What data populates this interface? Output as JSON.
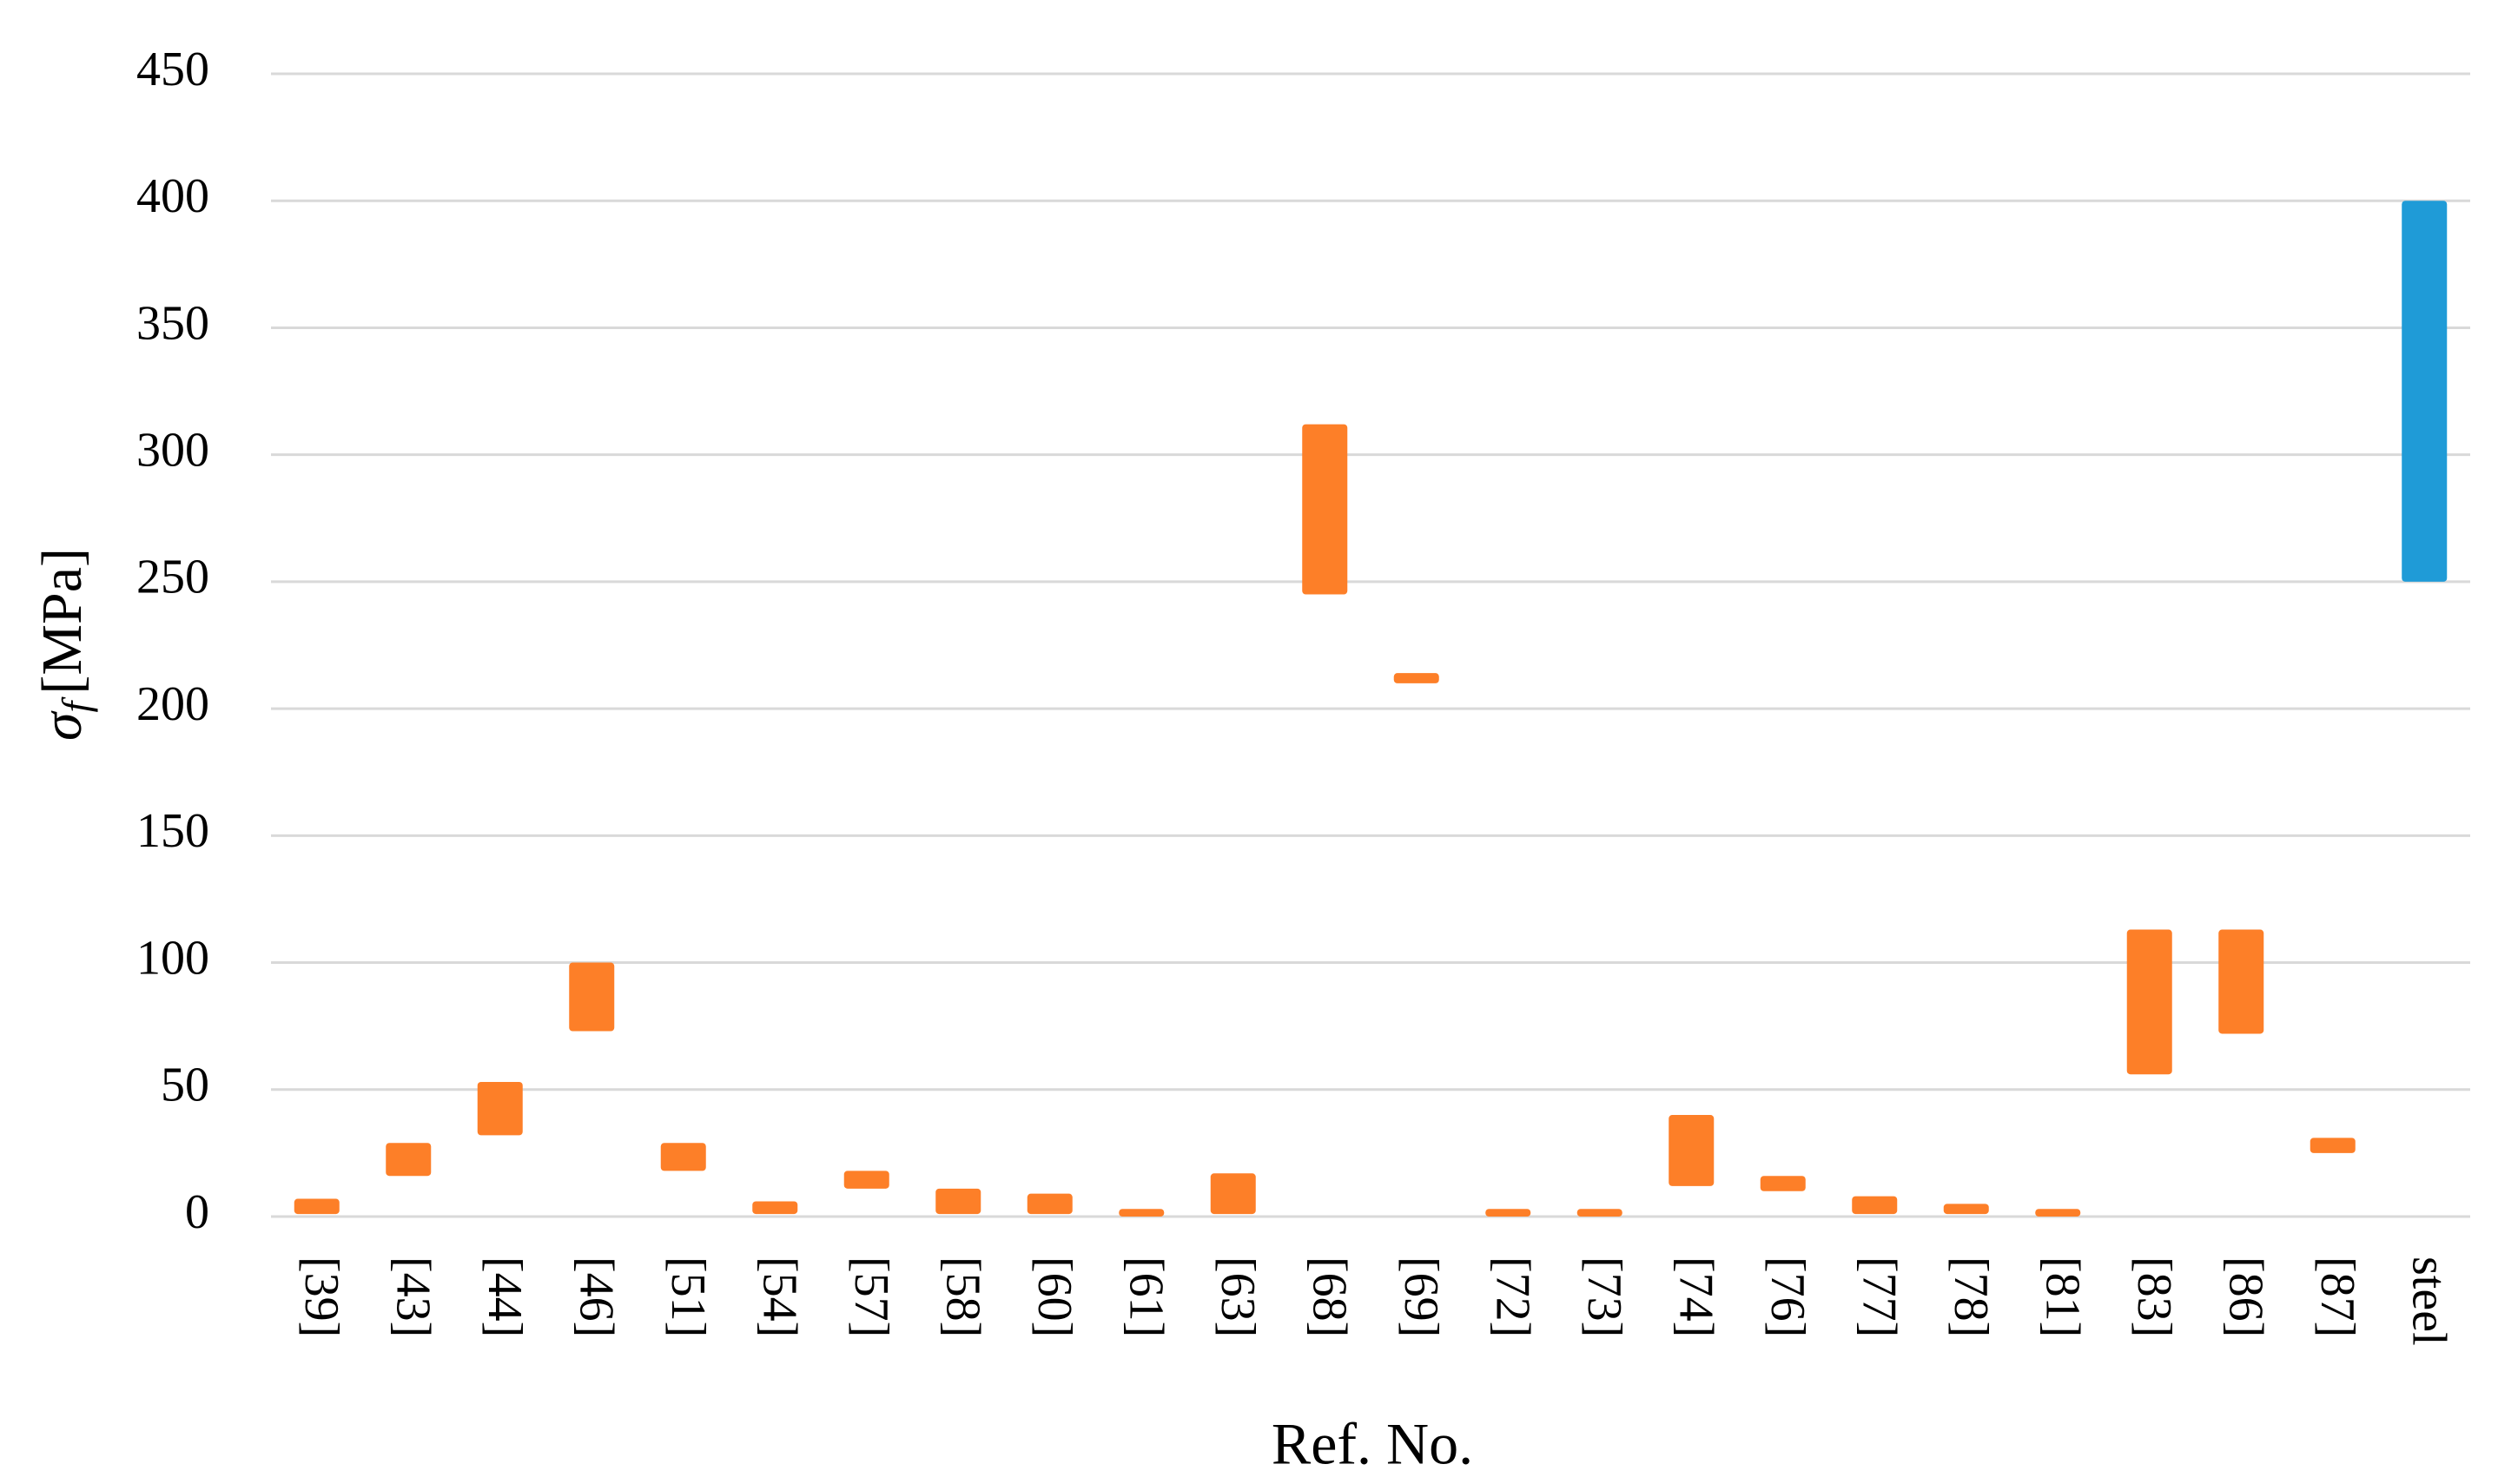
{
  "chart_data": {
    "type": "floating-bar",
    "xlabel": "Ref. No.",
    "ylabel_symbol": "σ",
    "ylabel_subscript": "f",
    "ylabel_unit": "[MPa]",
    "categories": [
      "[39]",
      "[43]",
      "[44]",
      "[46]",
      "[51]",
      "[54]",
      "[57]",
      "[58]",
      "[60]",
      "[61]",
      "[63]",
      "[68]",
      "[69]",
      "[72]",
      "[73]",
      "[74]",
      "[76]",
      "[77]",
      "[78]",
      "[81]",
      "[83]",
      "[86]",
      "[87]",
      "steel"
    ],
    "lows": [
      1,
      16,
      32,
      73,
      18,
      1,
      11,
      1,
      1,
      0,
      1,
      245,
      210,
      0,
      0,
      12,
      10,
      1,
      1,
      0,
      56,
      72,
      25,
      250
    ],
    "highs": [
      7,
      29,
      53,
      100,
      29,
      6,
      18,
      11,
      9,
      3,
      17,
      312,
      214,
      3,
      3,
      40,
      16,
      8,
      5,
      3,
      113,
      113,
      31,
      400
    ],
    "colors": [
      "#fd7f28",
      "#fd7f28",
      "#fd7f28",
      "#fd7f28",
      "#fd7f28",
      "#fd7f28",
      "#fd7f28",
      "#fd7f28",
      "#fd7f28",
      "#fd7f28",
      "#fd7f28",
      "#fd7f28",
      "#fd7f28",
      "#fd7f28",
      "#fd7f28",
      "#fd7f28",
      "#fd7f28",
      "#fd7f28",
      "#fd7f28",
      "#fd7f28",
      "#fd7f28",
      "#fd7f28",
      "#fd7f28",
      "#1f9bd7"
    ],
    "ylim": [
      0,
      450
    ],
    "yticks": [
      0,
      50,
      100,
      150,
      200,
      250,
      300,
      350,
      400,
      450
    ],
    "grid": true
  }
}
